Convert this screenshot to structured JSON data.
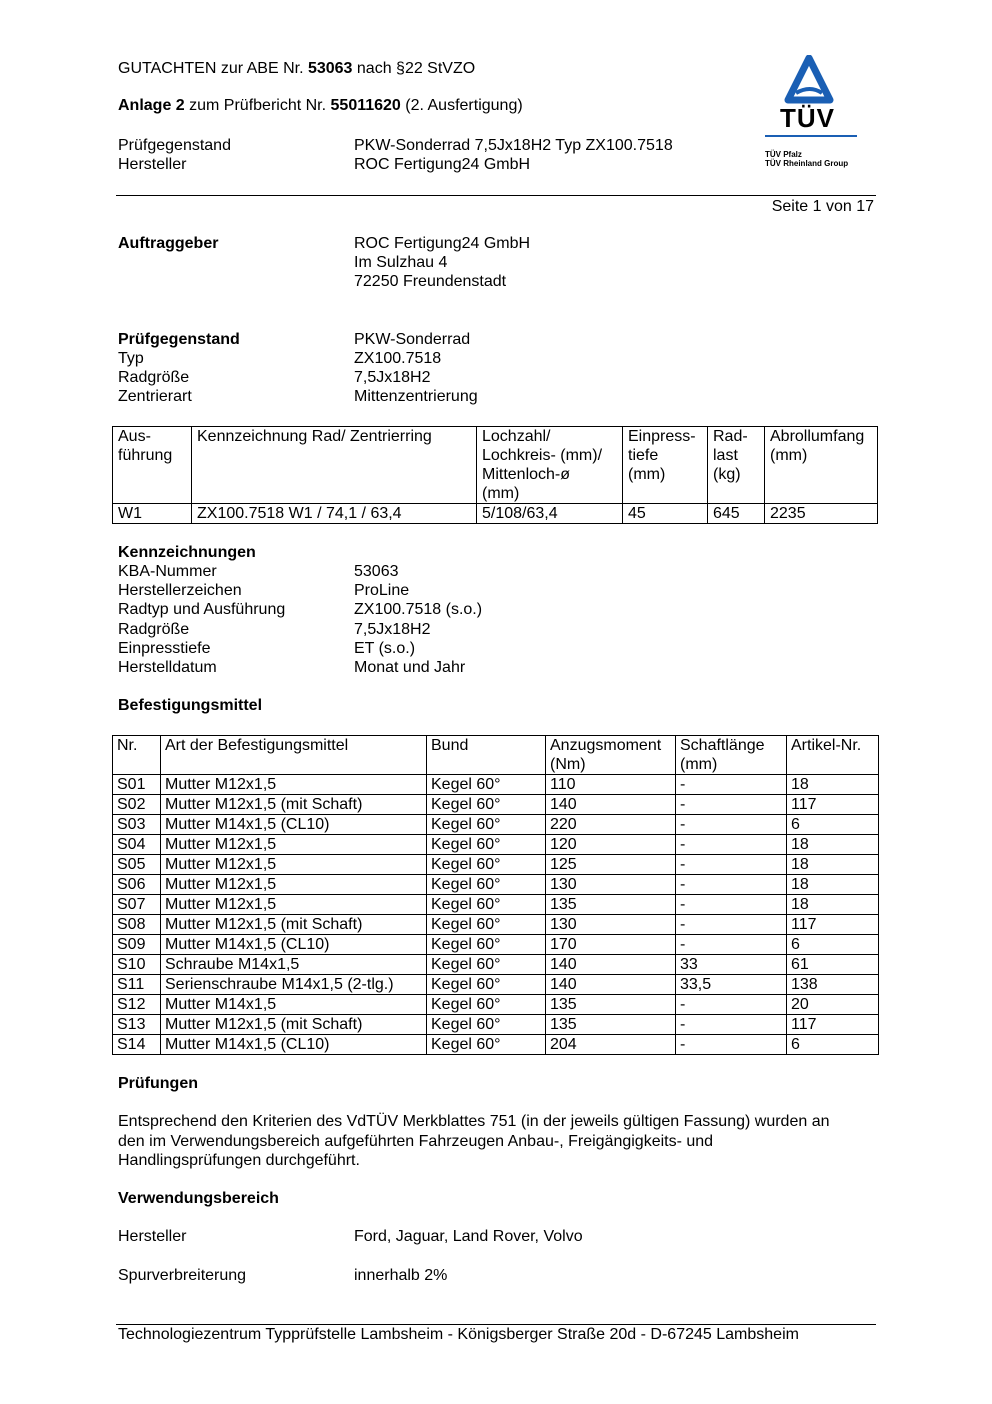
{
  "header": {
    "line1_pre": "GUTACHTEN zur ABE Nr. ",
    "line1_bold": "53063",
    "line1_post": " nach §22 StVZO",
    "line2_bold": "Anlage 2",
    "line2_mid": " zum Prüfbericht Nr. ",
    "line2_bold2": "55011620",
    "line2_post": " (2. Ausfertigung)",
    "rows": [
      {
        "label": "Prüfgegenstand",
        "value": "PKW-Sonderrad 7,5Jx18H2 Typ ZX100.7518"
      },
      {
        "label": "Hersteller",
        "value": "ROC Fertigung24 GmbH"
      }
    ],
    "page": "Seite 1 von 17"
  },
  "logo": {
    "text": "TÜV",
    "line1": "TÜV Pfalz",
    "line2": "TÜV Rheinland Group",
    "color": "#1a5fb4"
  },
  "auftraggeber": {
    "label": "Auftraggeber",
    "lines": [
      "ROC Fertigung24 GmbH",
      "Im Sulzhau 4",
      "72250 Freundenstadt"
    ]
  },
  "pruefgegenstand": [
    {
      "label": "Prüfgegenstand",
      "value": "PKW-Sonderrad"
    },
    {
      "label": "Typ",
      "value": "ZX100.7518"
    },
    {
      "label": "Radgröße",
      "value": "7,5Jx18H2"
    },
    {
      "label": "Zentrierart",
      "value": "Mittenzentrierung"
    }
  ],
  "wheel_table": {
    "headers": [
      "Aus-\nführung",
      "Kennzeichnung Rad/ Zentrierring",
      "Lochzahl/\nLochkreis- (mm)/\nMittenloch-ø\n(mm)",
      "Einpress-\ntiefe\n(mm)",
      "Rad-\nlast\n(kg)",
      "Abrollumfang\n(mm)"
    ],
    "rows": [
      [
        "W1",
        "ZX100.7518 W1 / 74,1 / 63,4",
        "5/108/63,4",
        "45",
        "645",
        "2235"
      ]
    ]
  },
  "kennzeichnungen": {
    "title": "Kennzeichnungen",
    "rows": [
      {
        "label": "KBA-Nummer",
        "value": "53063"
      },
      {
        "label": "Herstellerzeichen",
        "value": "ProLine"
      },
      {
        "label": "Radtyp und Ausführung",
        "value": "ZX100.7518  (s.o.)"
      },
      {
        "label": "Radgröße",
        "value": "7,5Jx18H2"
      },
      {
        "label": "Einpresstiefe",
        "value": "ET (s.o.)"
      },
      {
        "label": "Herstelldatum",
        "value": "Monat und Jahr"
      }
    ]
  },
  "befestigung": {
    "title": "Befestigungsmittel",
    "headers": [
      "Nr.",
      "Art der Befestigungsmittel",
      "Bund",
      "Anzugsmoment\n(Nm)",
      "Schaftlänge\n(mm)",
      "Artikel-Nr."
    ],
    "rows": [
      [
        "S01",
        "Mutter M12x1,5",
        "Kegel 60°",
        "110",
        "-",
        "18"
      ],
      [
        "S02",
        "Mutter M12x1,5 (mit Schaft)",
        "Kegel 60°",
        "140",
        "-",
        "117"
      ],
      [
        "S03",
        "Mutter M14x1,5 (CL10)",
        "Kegel 60°",
        "220",
        "-",
        "6"
      ],
      [
        "S04",
        "Mutter M12x1,5",
        "Kegel 60°",
        "120",
        "-",
        "18"
      ],
      [
        "S05",
        "Mutter M12x1,5",
        "Kegel 60°",
        "125",
        "-",
        "18"
      ],
      [
        "S06",
        "Mutter M12x1,5",
        "Kegel 60°",
        "130",
        "-",
        "18"
      ],
      [
        "S07",
        "Mutter M12x1,5",
        "Kegel 60°",
        "135",
        "-",
        "18"
      ],
      [
        "S08",
        "Mutter M12x1,5 (mit Schaft)",
        "Kegel 60°",
        "130",
        "-",
        "117"
      ],
      [
        "S09",
        "Mutter M14x1,5 (CL10)",
        "Kegel 60°",
        "170",
        "-",
        "6"
      ],
      [
        "S10",
        "Schraube M14x1,5",
        "Kegel 60°",
        "140",
        "33",
        "61"
      ],
      [
        "S11",
        "Serienschraube M14x1,5 (2-tlg.)",
        "Kegel 60°",
        "140",
        "33,5",
        "138"
      ],
      [
        "S12",
        "Mutter M14x1,5",
        "Kegel 60°",
        "135",
        "-",
        "20"
      ],
      [
        "S13",
        "Mutter M12x1,5 (mit Schaft)",
        "Kegel 60°",
        "135",
        "-",
        "117"
      ],
      [
        "S14",
        "Mutter M14x1,5 (CL10)",
        "Kegel 60°",
        "204",
        "-",
        "6"
      ]
    ]
  },
  "pruefungen": {
    "title": "Prüfungen",
    "lines": [
      "Entsprechend den Kriterien des VdTÜV Merkblattes 751 (in der jeweils gültigen Fassung) wurden an",
      "den im Verwendungsbereich aufgeführten Fahrzeugen Anbau-, Freigängigkeits- und",
      "Handlingsprüfungen durchgeführt."
    ]
  },
  "verwendungsbereich": {
    "title": "Verwendungsbereich",
    "rows": [
      {
        "label": "Hersteller",
        "value": "Ford, Jaguar, Land Rover, Volvo"
      },
      {
        "label": "Spurverbreiterung",
        "value": "innerhalb 2%"
      }
    ]
  },
  "footer": "Technologiezentrum Typprüfstelle Lambsheim - Königsberger Straße 20d - D-67245 Lambsheim"
}
